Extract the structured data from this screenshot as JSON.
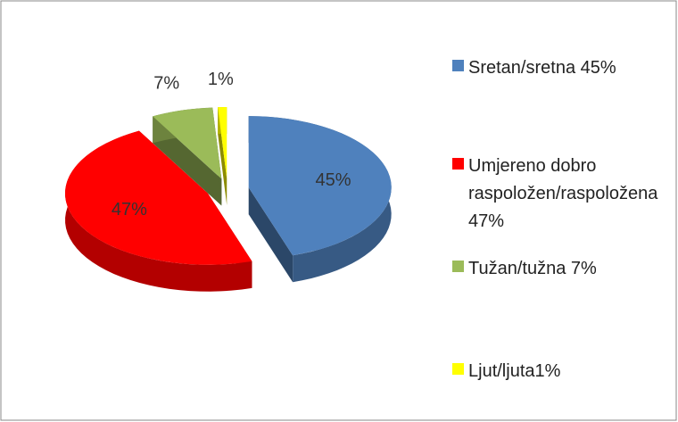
{
  "chart_data": {
    "type": "pie",
    "categories": [
      "Sretan/sretna 45%",
      "Umjereno dobro raspoložen/raspoložena 47%",
      "Tužan/tužna 7%",
      "Ljut/ljuta1%"
    ],
    "values": [
      45,
      47,
      7,
      1
    ],
    "value_labels": [
      "45%",
      "47%",
      "7%",
      "1%"
    ],
    "colors": [
      "#4f81bd",
      "#ff0000",
      "#9bbb59",
      "#ffff00"
    ],
    "legend": "right"
  }
}
